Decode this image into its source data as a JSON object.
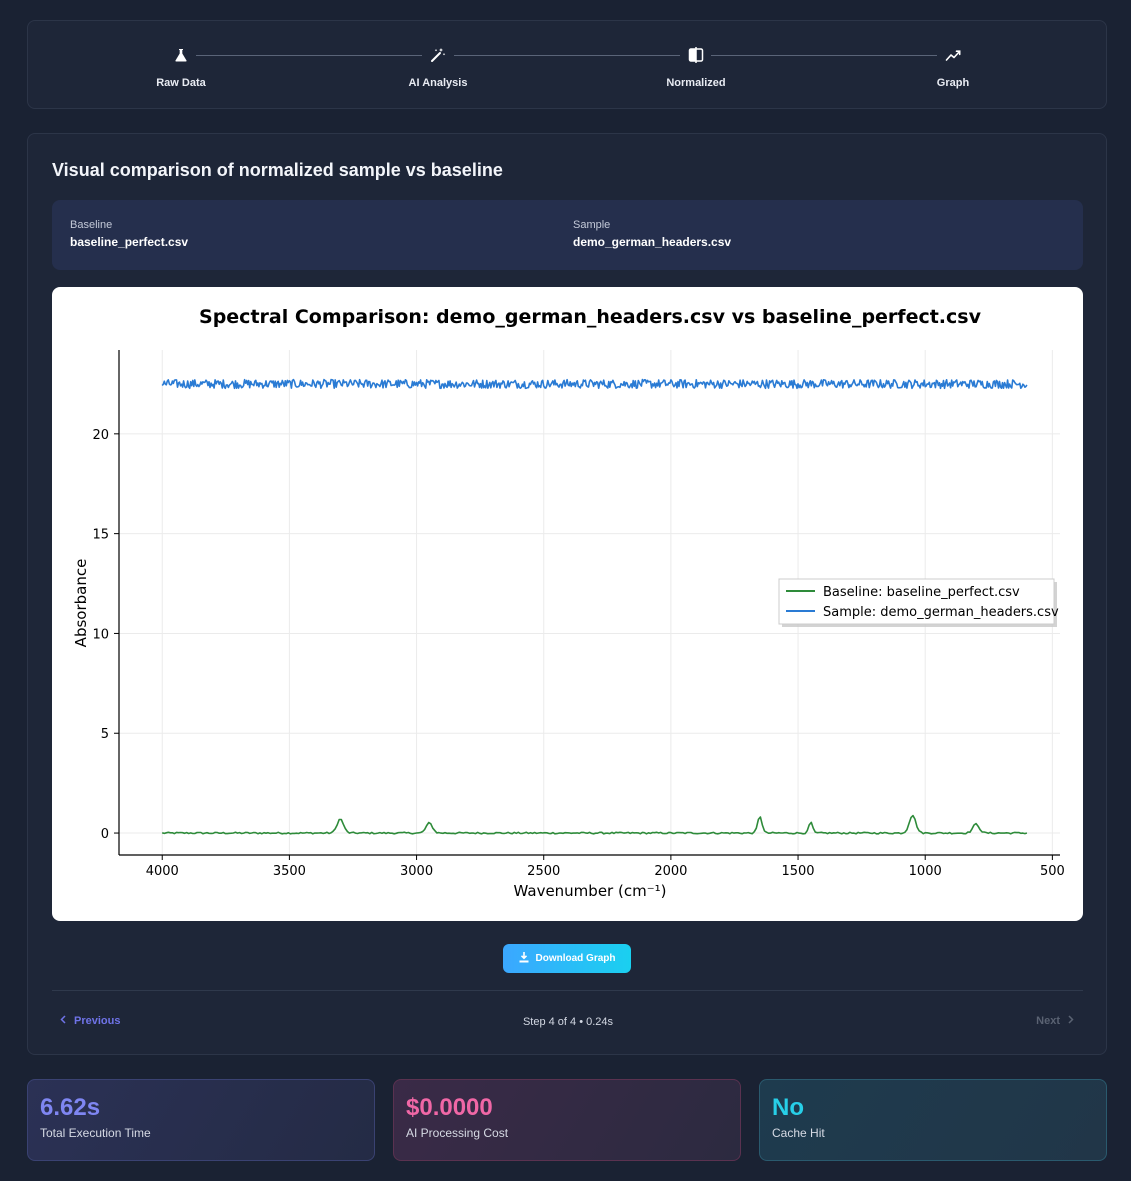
{
  "stepper": {
    "steps": [
      {
        "label": "Raw Data",
        "icon": "flask-icon"
      },
      {
        "label": "AI Analysis",
        "icon": "magic-wand-icon"
      },
      {
        "label": "Normalized",
        "icon": "compare-icon"
      },
      {
        "label": "Graph",
        "icon": "chart-line-icon"
      }
    ]
  },
  "section": {
    "title": "Visual comparison of normalized sample vs baseline",
    "baseline_label": "Baseline",
    "baseline_file": "baseline_perfect.csv",
    "sample_label": "Sample",
    "sample_file": "demo_german_headers.csv"
  },
  "chart_data": {
    "type": "line",
    "title": "Spectral Comparison: demo_german_headers.csv vs baseline_perfect.csv",
    "xlabel": "Wavenumber (cm⁻¹)",
    "ylabel": "Absorbance",
    "xlim": [
      4170,
      470
    ],
    "ylim": [
      -1.1,
      24.2
    ],
    "x_reversed": true,
    "xticks": [
      4000,
      3500,
      3000,
      2500,
      2000,
      1500,
      1000,
      500
    ],
    "yticks": [
      0,
      5,
      10,
      15,
      20
    ],
    "grid": true,
    "legend_position": "center-right",
    "series": [
      {
        "name": "Baseline: baseline_perfect.csv",
        "color": "#2e8b3a",
        "x_range": [
          4000,
          600
        ],
        "base": 0.0,
        "noise": 0.04,
        "peaks": [
          {
            "center": 3300,
            "height": 0.7,
            "width": 18
          },
          {
            "center": 2950,
            "height": 0.5,
            "width": 18
          },
          {
            "center": 1650,
            "height": 0.85,
            "width": 12
          },
          {
            "center": 1450,
            "height": 0.55,
            "width": 10
          },
          {
            "center": 1050,
            "height": 0.9,
            "width": 18
          },
          {
            "center": 800,
            "height": 0.45,
            "width": 18
          }
        ]
      },
      {
        "name": "Sample: demo_german_headers.csv",
        "color": "#2a7bd4",
        "x_range": [
          4000,
          600
        ],
        "base": 22.5,
        "noise": 0.22,
        "peaks": []
      }
    ]
  },
  "actions": {
    "download_label": "Download Graph",
    "previous_label": "Previous",
    "next_label": "Next",
    "step_status": "Step 4 of 4 • 0.24s"
  },
  "stats": {
    "time_value": "6.62s",
    "time_caption": "Total Execution Time",
    "cost_value": "$0.0000",
    "cost_caption": "AI Processing Cost",
    "cache_value": "No",
    "cache_caption": "Cache Hit"
  },
  "colors": {
    "accent": "#6f73e8",
    "download": "#1ad0f0"
  }
}
